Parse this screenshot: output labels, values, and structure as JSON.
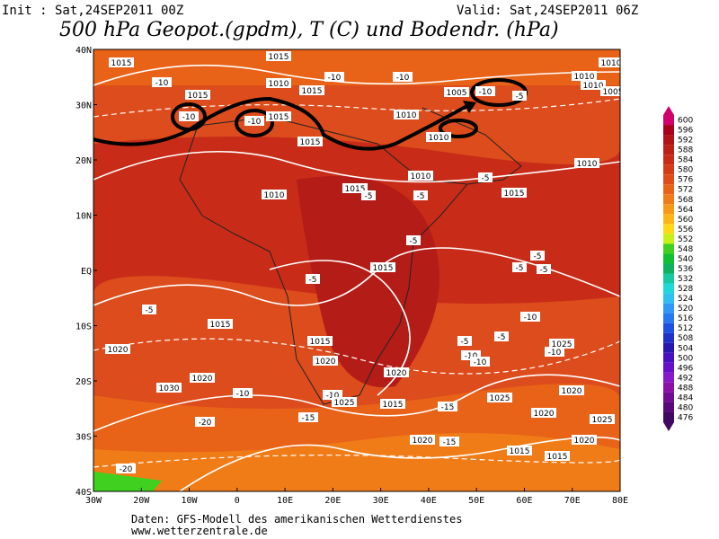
{
  "header": {
    "init": "Init : Sat,24SEP2011 00Z",
    "valid": "Valid: Sat,24SEP2011 06Z",
    "title": "500 hPa Geopot.(gpdm), T (C) und Bodendr. (hPa)"
  },
  "map": {
    "lat_labels": [
      "40N",
      "30N",
      "20N",
      "10N",
      "EQ",
      "10S",
      "20S",
      "30S",
      "40S"
    ],
    "lon_labels": [
      "30W",
      "20W",
      "10W",
      "0",
      "10E",
      "20E",
      "30E",
      "40E",
      "50E",
      "60E",
      "70E",
      "80E"
    ],
    "contour_labels": [
      "1015",
      "1015",
      "-10",
      "1015",
      "-10",
      "1010",
      "-10",
      "1015",
      "1015",
      "1010",
      "1005",
      "-10",
      "-10",
      "1010",
      "-10",
      "-5",
      "1010",
      "1010",
      "1005",
      "1015",
      "1010",
      "1010",
      "1010",
      "-5",
      "1015",
      "1010",
      "-5",
      "-5",
      "1015",
      "-5",
      "-5",
      "-5",
      "-5",
      "1015",
      "-5",
      "-5",
      "-10",
      "1015",
      "-5",
      "1015",
      "-5",
      "1020",
      "1025",
      "-10",
      "1020",
      "-10",
      "-10",
      "1020",
      "1030",
      "-10",
      "1020",
      "1020",
      "-10",
      "1025",
      "1015",
      "-15",
      "1025",
      "1020",
      "1025",
      "-20",
      "-15",
      "1020",
      "-15",
      "1020",
      "1015",
      "1015",
      "-20"
    ]
  },
  "colorbar": {
    "levels": [
      600,
      596,
      592,
      588,
      584,
      580,
      576,
      572,
      568,
      564,
      560,
      556,
      552,
      548,
      540,
      536,
      532,
      528,
      524,
      520,
      516,
      512,
      508,
      504,
      500,
      496,
      492,
      488,
      484,
      480,
      476
    ],
    "colors": [
      "#d0006c",
      "#a8001c",
      "#b01418",
      "#bc2018",
      "#c82c18",
      "#d43c18",
      "#e04c18",
      "#e86218",
      "#f07c18",
      "#f89818",
      "#ffb418",
      "#ffd818",
      "#c8f018",
      "#40d020",
      "#10c030",
      "#10b060",
      "#18c8a0",
      "#20d8d8",
      "#30c0f0",
      "#3098f8",
      "#2878f0",
      "#2050e0",
      "#2030c8",
      "#2818b0",
      "#4810c0",
      "#6810c8",
      "#8818c8",
      "#8c10a8",
      "#700c90",
      "#580878",
      "#400860"
    ]
  },
  "footer": {
    "source": "Daten: GFS-Modell des amerikanischen Wetterdienstes",
    "site": "www.wetterzentrale.de"
  }
}
